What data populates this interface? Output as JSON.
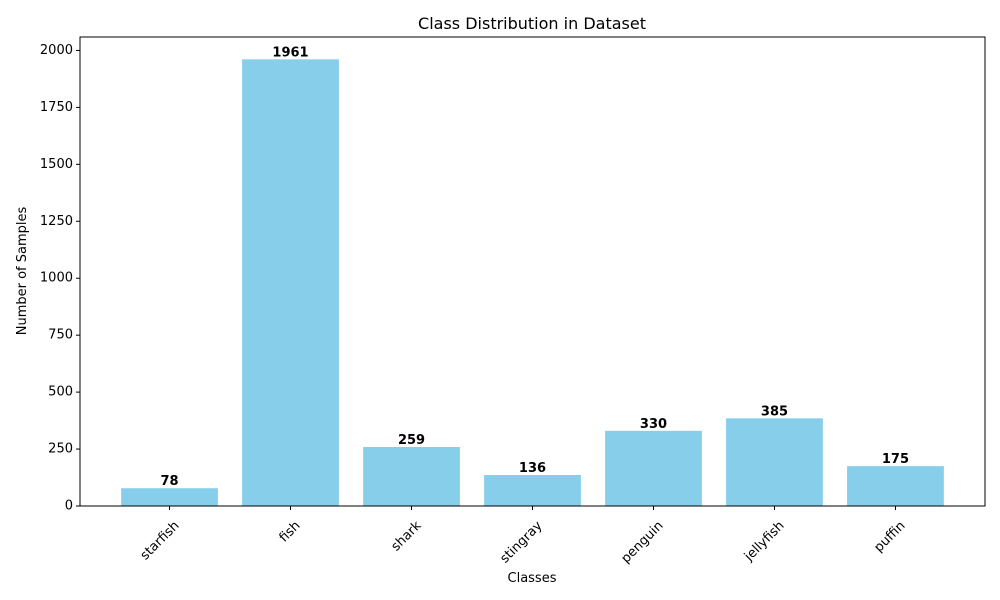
{
  "chart_data": {
    "type": "bar",
    "title": "Class Distribution in Dataset",
    "xlabel": "Classes",
    "ylabel": "Number of Samples",
    "categories": [
      "starfish",
      "fish",
      "shark",
      "stingray",
      "penguin",
      "jellyfish",
      "puffin"
    ],
    "values": [
      78,
      1961,
      259,
      136,
      330,
      385,
      175
    ],
    "ylim": [
      0,
      2059
    ],
    "yticks": [
      0,
      250,
      500,
      750,
      1000,
      1250,
      1500,
      1750,
      2000
    ],
    "bar_color": "#87CEEB",
    "grid": false,
    "xtick_rotation": 45
  }
}
